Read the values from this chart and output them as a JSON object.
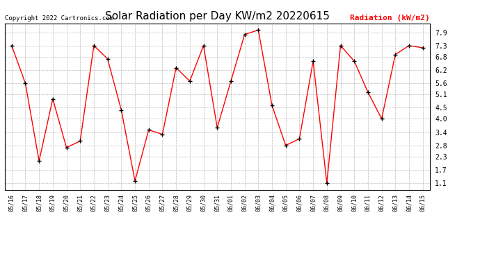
{
  "title": "Solar Radiation per Day KW/m2 20220615",
  "copyright": "Copyright 2022 Cartronics.com",
  "legend_label": "Radiation (kW/m2)",
  "dates": [
    "05/16",
    "05/17",
    "05/18",
    "05/19",
    "05/20",
    "05/21",
    "05/22",
    "05/23",
    "05/24",
    "05/25",
    "05/26",
    "05/27",
    "05/28",
    "05/29",
    "05/30",
    "05/31",
    "06/01",
    "06/02",
    "06/03",
    "06/04",
    "06/05",
    "06/06",
    "06/07",
    "06/08",
    "06/09",
    "06/10",
    "06/11",
    "06/12",
    "06/13",
    "06/14",
    "06/15"
  ],
  "values": [
    7.3,
    5.6,
    2.1,
    4.9,
    2.7,
    3.0,
    7.3,
    6.7,
    4.4,
    1.2,
    3.5,
    3.3,
    6.3,
    5.7,
    7.3,
    3.6,
    5.7,
    7.8,
    8.0,
    4.6,
    2.8,
    3.1,
    6.6,
    1.1,
    7.3,
    6.6,
    5.2,
    4.0,
    6.9,
    7.3,
    7.2
  ],
  "ylim": [
    0.8,
    8.3
  ],
  "yticks": [
    1.1,
    1.7,
    2.3,
    2.8,
    3.4,
    4.0,
    4.5,
    5.1,
    5.6,
    6.2,
    6.8,
    7.3,
    7.9
  ],
  "line_color": "red",
  "marker_color": "black",
  "grid_color": "#bbbbbb",
  "bg_color": "#ffffff",
  "title_fontsize": 11,
  "copyright_fontsize": 6.5,
  "legend_fontsize": 8,
  "tick_fontsize": 6,
  "ytick_fontsize": 7
}
